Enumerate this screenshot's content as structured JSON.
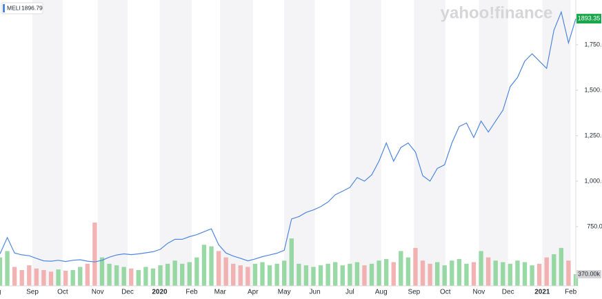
{
  "chart_data": {
    "type": "line",
    "logo": "yahoo!finance",
    "legend_value": 1896.79,
    "current_price": 1893.35,
    "current_color": "#1aa64a",
    "shade_color": "#f4f4f6",
    "series": [
      {
        "name": "MELI",
        "color": "#4f86e0",
        "values": [
          600,
          690,
          605,
          595,
          590,
          575,
          562,
          560,
          565,
          558,
          565,
          568,
          560,
          556,
          565,
          582,
          594,
          600,
          596,
          600,
          606,
          612,
          625,
          658,
          680,
          680,
          695,
          706,
          722,
          738,
          650,
          605,
          588,
          576,
          562,
          572,
          585,
          594,
          604,
          620,
          792,
          805,
          828,
          842,
          860,
          885,
          925,
          945,
          965,
          1020,
          1000,
          1035,
          1110,
          1210,
          1110,
          1185,
          1210,
          1160,
          1030,
          1000,
          1070,
          1090,
          1210,
          1300,
          1320,
          1240,
          1330,
          1270,
          1330,
          1390,
          1520,
          1570,
          1660,
          1700,
          1660,
          1620,
          1830,
          1930,
          1760,
          1893
        ]
      }
    ],
    "volume": {
      "up_color": "#7fd08f",
      "down_color": "#f0a0a0",
      "values": [
        900,
        1100,
        600,
        500,
        650,
        550,
        500,
        450,
        520,
        480,
        500,
        600,
        700,
        2000,
        900,
        700,
        650,
        600,
        550,
        500,
        600,
        550,
        650,
        700,
        800,
        700,
        750,
        900,
        1300,
        1250,
        1100,
        900,
        700,
        650,
        600,
        700,
        750,
        650,
        700,
        800,
        1500,
        700,
        650,
        600,
        650,
        700,
        750,
        650,
        700,
        750,
        650,
        700,
        800,
        850,
        750,
        1100,
        900,
        1200,
        800,
        700,
        750,
        650,
        800,
        850,
        700,
        750,
        1100,
        900,
        800,
        750,
        700,
        800,
        750,
        650,
        700,
        900,
        1000,
        1200,
        800,
        370
      ]
    },
    "xlim": [
      0,
      79
    ],
    "xticks": [
      {
        "value": -0.7,
        "label": "Aug"
      },
      {
        "value": 4.45,
        "label": "Sep"
      },
      {
        "value": 8.6,
        "label": "Oct"
      },
      {
        "value": 13.4,
        "label": "Nov"
      },
      {
        "value": 17.5,
        "label": "Dec"
      },
      {
        "value": 21.9,
        "label": "2020"
      },
      {
        "value": 26.3,
        "label": "Feb"
      },
      {
        "value": 30.2,
        "label": "Mar"
      },
      {
        "value": 34.7,
        "label": "Apr"
      },
      {
        "value": 39,
        "label": "May"
      },
      {
        "value": 43.2,
        "label": "Jun"
      },
      {
        "value": 48,
        "label": "Jul"
      },
      {
        "value": 52.3,
        "label": "Aug"
      },
      {
        "value": 56.8,
        "label": "Sep"
      },
      {
        "value": 61.1,
        "label": "Oct"
      },
      {
        "value": 65.7,
        "label": "Nov"
      },
      {
        "value": 69.7,
        "label": "Dec"
      },
      {
        "value": 74.4,
        "label": "2021"
      },
      {
        "value": 78.3,
        "label": "Feb"
      }
    ],
    "ylim": [
      424,
      1996
    ],
    "yticks": [
      {
        "value": 750,
        "label": "750.00"
      },
      {
        "value": 1000,
        "label": "1,000.00"
      },
      {
        "value": 1250,
        "label": "1,250.00"
      },
      {
        "value": 1500,
        "label": "1,500.00"
      },
      {
        "value": 1750,
        "label": "1,750.00"
      }
    ],
    "y2lim": [
      0,
      9030
    ],
    "y2ticks": [
      {
        "value": 370,
        "label": "370.00k"
      }
    ]
  }
}
